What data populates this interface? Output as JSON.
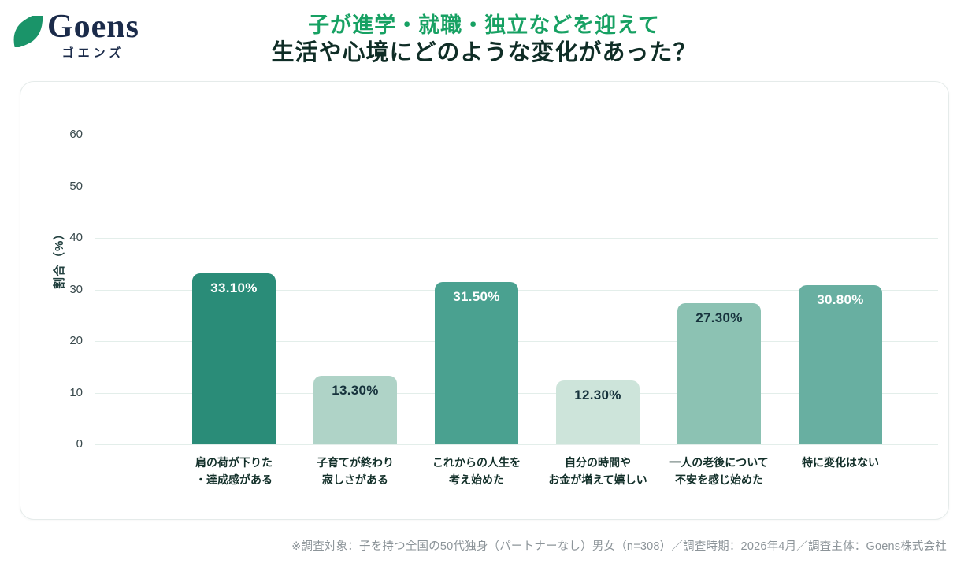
{
  "brand": {
    "name": "Goens",
    "kana": "ゴエンズ",
    "leaf_color": "#1a9469",
    "text_color": "#1b2b4a"
  },
  "title": {
    "line1": "子が進学・就職・独立などを迎えて",
    "line2": "生活や心境にどのような変化があった？",
    "line1_color": "#17a163",
    "line2_color": "#0f2d26"
  },
  "chart_data": {
    "type": "bar",
    "title": "",
    "ylabel": "割合（%）",
    "xlabel": "",
    "ylim": [
      0,
      60
    ],
    "yticks": [
      0,
      10,
      20,
      30,
      40,
      50,
      60
    ],
    "grid": true,
    "legend": "none",
    "categories": [
      "肩の荷が下りた\n・達成感がある",
      "子育てが終わり\n寂しさがある",
      "これからの人生を\n考え始めた",
      "自分の時間や\nお金が増えて嬉しい",
      "一人の老後について\n不安を感じ始めた",
      "特に変化はない"
    ],
    "values": [
      33.1,
      13.3,
      31.5,
      12.3,
      27.3,
      30.8
    ],
    "value_labels": [
      "33.10%",
      "13.30%",
      "31.50%",
      "12.30%",
      "27.30%",
      "30.80%"
    ],
    "bar_colors": [
      "#2a8c78",
      "#afd3c7",
      "#4aa190",
      "#cde4da",
      "#8cc2b3",
      "#68afa1"
    ],
    "value_label_colors": [
      "#ffffff",
      "#16323c",
      "#ffffff",
      "#16323c",
      "#16323c",
      "#ffffff"
    ],
    "gridline_color": "#e3eeea"
  },
  "footnote": "※調査対象：子を持つ全国の50代独身（パートナーなし）男女（n=308）／調査時期：2026年4月／調査主体：Goens株式会社"
}
